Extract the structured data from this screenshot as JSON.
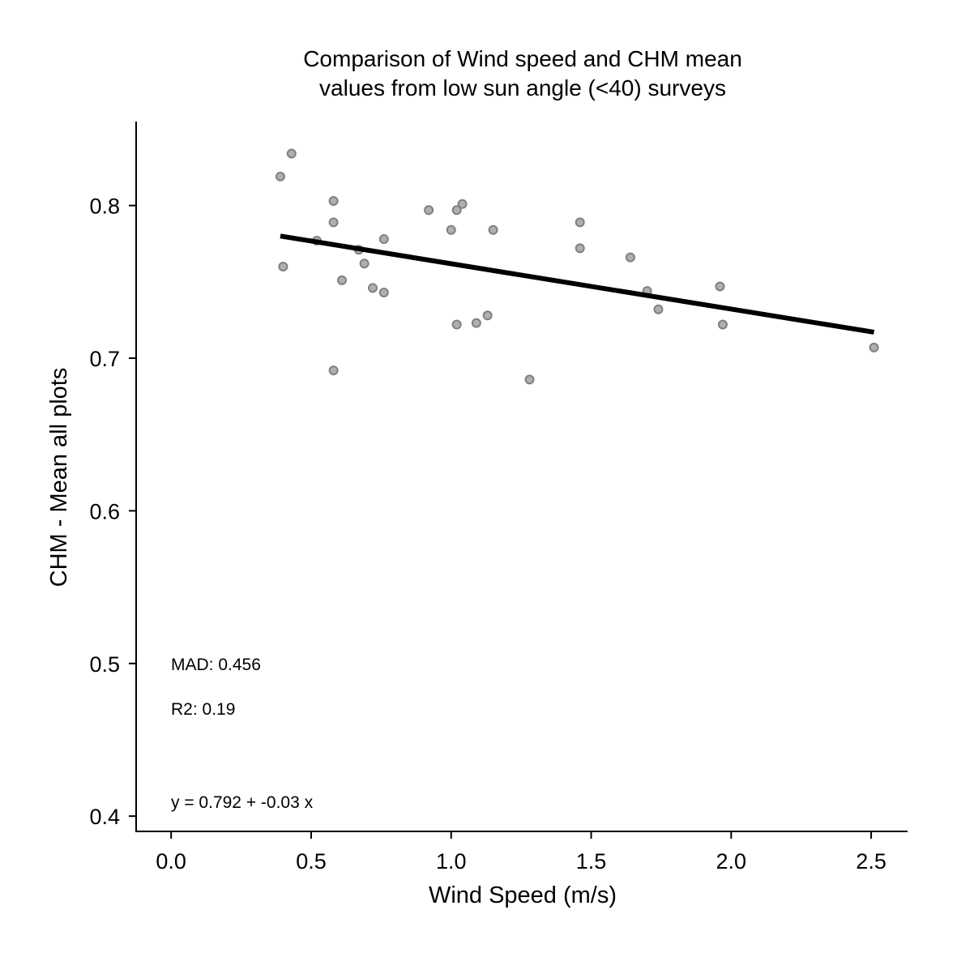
{
  "chart_data": {
    "type": "scatter",
    "title": [
      "Comparison of Wind speed and CHM mean",
      "values from low sun angle (<40) surveys"
    ],
    "xlabel": "Wind Speed (m/s)",
    "ylabel": "CHM - Mean all plots",
    "xlim": [
      -0.125,
      2.63
    ],
    "ylim": [
      0.39,
      0.855
    ],
    "x_ticks": [
      0.0,
      0.5,
      1.0,
      1.5,
      2.0,
      2.5
    ],
    "x_tick_labels": [
      "0.0",
      "0.5",
      "1.0",
      "1.5",
      "2.0",
      "2.5"
    ],
    "y_ticks": [
      0.4,
      0.5,
      0.6,
      0.7,
      0.8
    ],
    "y_tick_labels": [
      "0.4",
      "0.5",
      "0.6",
      "0.7",
      "0.8"
    ],
    "grid": false,
    "point_color": "#a6a6a6",
    "point_edge_color": "#808080",
    "line_color": "#000000",
    "points": [
      {
        "x": 0.39,
        "y": 0.819
      },
      {
        "x": 0.43,
        "y": 0.834
      },
      {
        "x": 0.4,
        "y": 0.76
      },
      {
        "x": 0.52,
        "y": 0.777
      },
      {
        "x": 0.58,
        "y": 0.803
      },
      {
        "x": 0.58,
        "y": 0.789
      },
      {
        "x": 0.58,
        "y": 0.692
      },
      {
        "x": 0.61,
        "y": 0.751
      },
      {
        "x": 0.67,
        "y": 0.771
      },
      {
        "x": 0.69,
        "y": 0.762
      },
      {
        "x": 0.72,
        "y": 0.746
      },
      {
        "x": 0.76,
        "y": 0.778
      },
      {
        "x": 0.76,
        "y": 0.743
      },
      {
        "x": 0.92,
        "y": 0.797
      },
      {
        "x": 1.0,
        "y": 0.784
      },
      {
        "x": 1.02,
        "y": 0.797
      },
      {
        "x": 1.04,
        "y": 0.801
      },
      {
        "x": 1.02,
        "y": 0.722
      },
      {
        "x": 1.09,
        "y": 0.723
      },
      {
        "x": 1.13,
        "y": 0.728
      },
      {
        "x": 1.15,
        "y": 0.784
      },
      {
        "x": 1.28,
        "y": 0.686
      },
      {
        "x": 1.46,
        "y": 0.789
      },
      {
        "x": 1.46,
        "y": 0.772
      },
      {
        "x": 1.64,
        "y": 0.766
      },
      {
        "x": 1.7,
        "y": 0.744
      },
      {
        "x": 1.74,
        "y": 0.732
      },
      {
        "x": 1.96,
        "y": 0.747
      },
      {
        "x": 1.97,
        "y": 0.722
      },
      {
        "x": 2.51,
        "y": 0.707
      }
    ],
    "fit_line": {
      "x": [
        0.39,
        2.51
      ],
      "y": [
        0.78,
        0.717
      ]
    },
    "annotations": {
      "mad": "MAD: 0.456",
      "r2": "R2: 0.19",
      "equation": "y =  0.792 + -0.03 x"
    }
  }
}
